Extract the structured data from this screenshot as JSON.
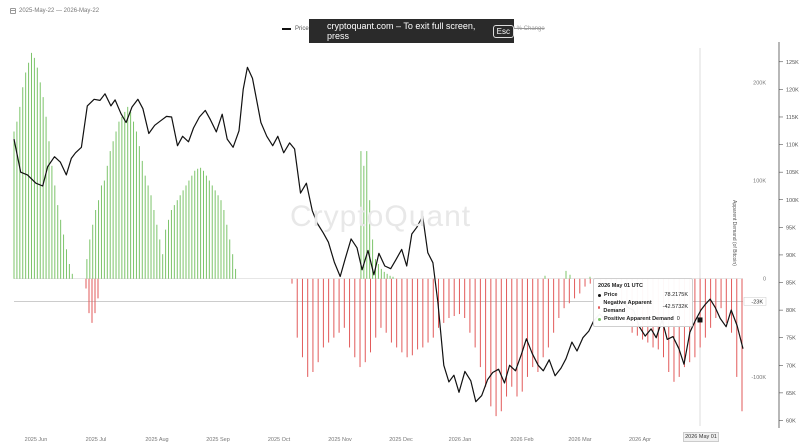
{
  "header": {
    "date_range": "2025-May-22 — 2026-May-22",
    "fullscreen_message": "cryptoquant.com – To exit full screen, press",
    "esc_key": "Esc",
    "legend_price": "Price",
    "legend_change": "y % Change",
    "watermark": "CryptoQuant"
  },
  "icons": {
    "calendar": "calendar-icon"
  },
  "colors": {
    "price_line": "#111111",
    "positive_demand": "#7cc46a",
    "negative_demand": "#e25a5a",
    "grid": "#eeeeee"
  },
  "tooltip": {
    "date": "2026 May 01 UTC",
    "rows": [
      {
        "label": "Price",
        "value": "78.2175K",
        "color": "#111111"
      },
      {
        "label": "Negative Apparent Demand",
        "value": "-42.5732K",
        "color": "#e25a5a"
      },
      {
        "label": "Positive Apparent Demand",
        "value": "0",
        "color": "#7cc46a"
      }
    ]
  },
  "cursor": {
    "date_label": "2026 May 01",
    "value_label": "-23K"
  },
  "chart_data": {
    "type": "bar",
    "title": "",
    "x_tick_labels": [
      "2025 Jun",
      "2025 Jul",
      "2025 Aug",
      "2025 Sep",
      "2025 Oct",
      "2025 Nov",
      "2025 Dec",
      "2026 Jan",
      "2026 Feb",
      "2026 Mar",
      "2026 Apr"
    ],
    "y_left": {
      "title": "",
      "ticks": [
        200000,
        100000,
        0,
        -100000
      ],
      "tick_labels": [
        "200K",
        "100K",
        "0",
        "-100K"
      ],
      "range": [
        -150000,
        235000
      ]
    },
    "y_right": {
      "title": "Apparent Demand (of Bitcoin)",
      "ticks": [
        60000,
        65000,
        70000,
        75000,
        80000,
        85000,
        90000,
        95000,
        100000,
        105000,
        110000,
        115000,
        120000,
        125000
      ],
      "tick_labels": [
        "60K",
        "65K",
        "70K",
        "75K",
        "80K",
        "85K",
        "90K",
        "95K",
        "100K",
        "105K",
        "110K",
        "115K",
        "120K",
        "125K"
      ],
      "range": [
        59000,
        127500
      ]
    },
    "series": [
      {
        "name": "Price",
        "type": "line",
        "x": [
          0,
          8,
          16,
          26,
          34,
          40,
          48,
          55,
          62,
          68,
          73,
          80,
          87,
          95,
          102,
          108,
          115,
          120,
          127,
          133,
          140,
          147,
          153,
          160,
          167,
          174,
          181,
          187,
          194,
          200,
          207,
          213,
          220,
          227,
          233,
          240,
          247,
          253,
          260,
          267,
          272,
          277,
          283,
          288,
          293,
          300,
          307,
          313,
          320,
          327,
          333,
          340,
          347,
          354,
          360,
          367,
          373,
          380,
          387,
          393,
          400,
          407,
          413,
          420,
          427,
          433,
          440,
          447,
          453,
          460,
          466,
          472,
          478,
          485,
          491,
          497,
          503,
          510,
          516,
          522,
          528,
          535,
          542,
          548,
          555,
          562,
          568,
          575,
          582,
          588,
          595,
          602,
          608,
          615,
          622,
          628,
          635,
          642,
          649,
          655,
          662,
          668,
          675,
          682,
          688,
          695,
          702,
          708,
          715,
          722,
          728,
          735,
          742,
          749,
          756,
          762,
          769,
          775,
          782,
          789,
          795,
          802,
          808,
          815,
          820,
          826,
          832,
          838,
          845,
          851,
          858,
          865
        ],
        "values": [
          111000,
          105000,
          104500,
          103000,
          102500,
          106000,
          107800,
          106800,
          104500,
          107500,
          108500,
          109500,
          117000,
          118200,
          118000,
          119200,
          117000,
          118100,
          115600,
          114000,
          116800,
          118200,
          116500,
          112000,
          113500,
          114300,
          115100,
          115000,
          109800,
          111500,
          110500,
          113000,
          115000,
          116200,
          114500,
          112300,
          115500,
          111000,
          109500,
          112500,
          120000,
          124000,
          122000,
          118000,
          114000,
          111500,
          109800,
          111500,
          108500,
          110300,
          109200,
          101200,
          103000,
          98000,
          95700,
          94000,
          92300,
          88700,
          86100,
          89300,
          92900,
          91300,
          87300,
          90800,
          86400,
          90300,
          88000,
          87500,
          89100,
          91000,
          88000,
          93800,
          95000,
          97000,
          90400,
          88600,
          81400,
          70000,
          67000,
          68200,
          65100,
          68900,
          67200,
          63400,
          64500,
          67400,
          68700,
          69300,
          66800,
          70000,
          69000,
          72000,
          74800,
          72100,
          70000,
          69000,
          71000,
          68100,
          69500,
          71200,
          74200,
          72600,
          75000,
          76200,
          78100,
          79300,
          78200,
          79000,
          80800,
          81700,
          80500,
          80000,
          77000,
          75300,
          76600,
          75000,
          78200,
          74700,
          75200,
          73000,
          70200,
          76000,
          78000,
          80000,
          81000,
          82000,
          80500,
          78500,
          77000,
          80000,
          77200,
          73000
        ]
      },
      {
        "name": "Positive Apparent Demand",
        "type": "bar",
        "x": [
          0,
          3,
          6,
          9,
          12,
          15,
          18,
          21,
          24,
          27,
          30,
          33,
          36,
          39,
          42,
          45,
          48,
          51,
          54,
          57,
          60,
          63,
          66,
          69,
          72,
          75,
          78,
          81,
          84,
          87,
          90,
          93,
          96,
          99,
          102,
          105,
          108,
          111,
          114,
          117,
          120,
          123,
          126,
          129,
          132,
          135,
          138,
          141,
          144,
          147,
          150,
          153,
          156,
          159,
          162,
          165,
          168,
          171,
          174,
          177,
          180,
          183,
          186,
          189,
          192,
          195,
          198,
          201,
          204,
          207,
          210,
          213,
          216,
          219,
          222,
          225,
          228,
          231,
          234,
          237,
          240,
          243,
          246,
          249,
          252,
          255,
          258,
          261,
          264,
          267,
          270,
          273,
          276,
          279,
          282,
          285,
          288,
          291,
          294,
          297,
          300,
          303,
          306,
          309,
          312,
          315,
          318,
          321,
          324,
          327,
          330,
          333,
          336,
          339,
          342,
          345,
          348,
          351,
          354,
          357,
          360,
          363,
          366,
          369,
          372,
          375,
          378,
          381,
          384,
          387,
          390
        ],
        "values": [
          150000,
          160000,
          175000,
          195000,
          210000,
          220000,
          230000,
          225000,
          215000,
          200000,
          185000,
          165000,
          140000,
          115000,
          95000,
          75000,
          60000,
          45000,
          30000,
          15000,
          5000,
          0,
          0,
          0,
          0,
          20000,
          40000,
          55000,
          70000,
          80000,
          95000,
          100000,
          115000,
          130000,
          140000,
          150000,
          160000,
          165000,
          170000,
          175000,
          170000,
          160000,
          150000,
          135000,
          120000,
          105000,
          95000,
          85000,
          70000,
          55000,
          40000,
          25000,
          50000,
          60000,
          70000,
          75000,
          80000,
          85000,
          90000,
          95000,
          100000,
          105000,
          110000,
          112000,
          113000,
          110000,
          105000,
          100000,
          95000,
          90000,
          85000,
          80000,
          70000,
          55000,
          40000,
          25000,
          10000,
          0,
          0,
          0,
          0,
          0,
          0,
          0,
          0,
          0,
          0,
          0,
          0,
          0,
          0,
          0,
          0,
          0,
          0,
          0,
          0,
          0,
          0,
          0,
          0,
          0,
          0,
          0,
          0,
          0,
          0,
          0,
          0,
          0,
          0,
          0,
          0,
          0,
          0,
          0,
          0,
          0,
          0,
          130000,
          115000,
          130000,
          80000,
          40000,
          20000,
          15000,
          10000,
          7000,
          5000,
          3000,
          2000
        ]
      },
      {
        "name": "Negative Apparent Demand",
        "type": "bar",
        "values": [
          -10000,
          -35000,
          -45000,
          -35000,
          -20000,
          -5000,
          -60000,
          -80000,
          -100000,
          -95000,
          -85000,
          -70000,
          -65000,
          -60000,
          -55000,
          -50000,
          -70000,
          -80000,
          -90000,
          -85000,
          -75000,
          -60000,
          -50000,
          -55000,
          -65000,
          -70000,
          -75000,
          -80000,
          -78000,
          -72000,
          -70000,
          -65000,
          -60000,
          -50000,
          -45000,
          -40000,
          -38000,
          -36000,
          -40000,
          -55000,
          -70000,
          -90000,
          -110000,
          -130000,
          -140000,
          -135000,
          -120000,
          -110000,
          -120000,
          -115000,
          -100000,
          -90000,
          -95000,
          -80000,
          -70000,
          -55000,
          -40000,
          -30000,
          -25000,
          -20000,
          -15000,
          -8000,
          -5000,
          0,
          -4000,
          -3000,
          -3000,
          -25000,
          -35000,
          -45000,
          -55000,
          -58000,
          -62000,
          -65000,
          -70000,
          -72000,
          -80000,
          -95000,
          -105000,
          -100000,
          -90000,
          -85000,
          -80000,
          -70000,
          -60000,
          -50000,
          -40000,
          -30000,
          -45000,
          -55000,
          -100000,
          -135000
        ]
      }
    ],
    "annotation": {
      "date": "2026 May 01",
      "price": 78217.5,
      "negative_apparent_demand": -42573.2,
      "positive_apparent_demand": 0,
      "cursor_value": -23000
    },
    "grid": false,
    "legend_placement": "top"
  }
}
